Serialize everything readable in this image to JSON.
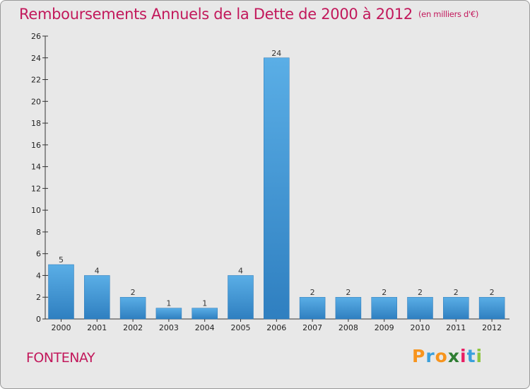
{
  "chart_data": {
    "type": "bar",
    "title": "Remboursements Annuels de la Dette de 2000 à 2012",
    "subtitle": "(en milliers d'€)",
    "categories": [
      "2000",
      "2001",
      "2002",
      "2003",
      "2004",
      "2005",
      "2006",
      "2007",
      "2008",
      "2009",
      "2010",
      "2011",
      "2012"
    ],
    "values": [
      5,
      4,
      2,
      1,
      1,
      4,
      24,
      2,
      2,
      2,
      2,
      2,
      2
    ],
    "ylim": [
      0,
      26
    ],
    "yticks": [
      0,
      2,
      4,
      6,
      8,
      10,
      12,
      14,
      16,
      18,
      20,
      22,
      24,
      26
    ],
    "xlabel": "",
    "ylabel": "",
    "bar_color": "#3a8fd0",
    "grid": false
  },
  "footer": {
    "city": "FONTENAY",
    "brand": "Proxiti",
    "brand_colors": [
      "#f7941d",
      "#3aa0dc",
      "#f7941d",
      "#2e7d32",
      "#e91e63",
      "#3aa0dc",
      "#8dc63f"
    ]
  }
}
